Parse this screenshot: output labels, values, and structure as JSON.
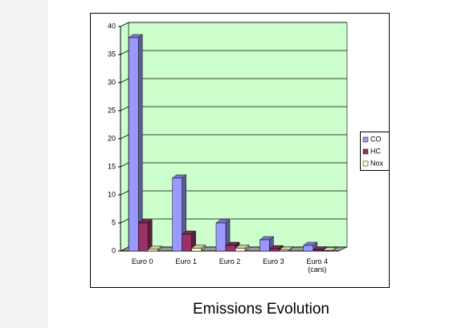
{
  "chart_data": {
    "type": "bar3d",
    "title": "Emissions Evolution",
    "categories": [
      "Euro 0",
      "Euro 1",
      "Euro 2",
      "Euro 3",
      "Euro 4 (cars)"
    ],
    "series": [
      {
        "name": "CO",
        "color": "#9999ff",
        "values": [
          38,
          13,
          5,
          2,
          1
        ]
      },
      {
        "name": "HC",
        "color": "#993366",
        "values": [
          5,
          3,
          1,
          0.4,
          0.2
        ]
      },
      {
        "name": "Nox",
        "color": "#ffffcc",
        "values": [
          0.3,
          0.5,
          0.5,
          0.15,
          0.08
        ]
      }
    ],
    "ylim": [
      0,
      40
    ],
    "yticks": [
      0,
      5,
      10,
      15,
      20,
      25,
      30,
      35,
      40
    ],
    "grid": true,
    "legend": "right",
    "plot_background": "#ccffcc"
  }
}
